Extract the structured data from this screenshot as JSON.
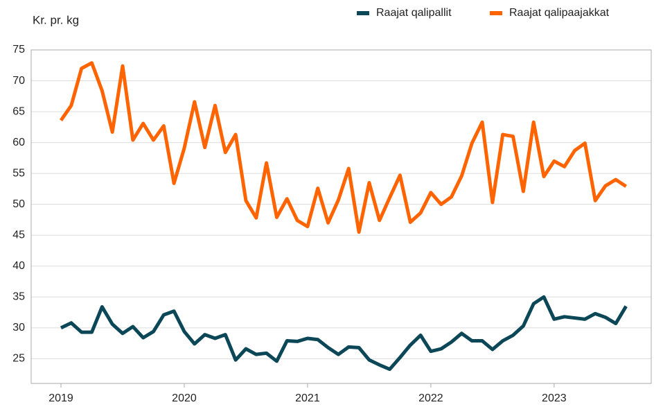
{
  "chart_data": {
    "type": "line",
    "title": "Kr. pr. kg",
    "categories": [
      "2019",
      null,
      null,
      null,
      null,
      null,
      null,
      null,
      null,
      null,
      null,
      null,
      "2020",
      null,
      null,
      null,
      null,
      null,
      null,
      null,
      null,
      null,
      null,
      null,
      "2021",
      null,
      null,
      null,
      null,
      null,
      null,
      null,
      null,
      null,
      null,
      null,
      "2022",
      null,
      null,
      null,
      null,
      null,
      null,
      null,
      null,
      null,
      null,
      null,
      "2023",
      null,
      null,
      null,
      null,
      null,
      null,
      null
    ],
    "series": [
      {
        "name": "Raajat qalipallit",
        "color": "#0b4757",
        "values": [
          30.0,
          30.8,
          29.3,
          29.3,
          33.4,
          30.6,
          29.1,
          30.2,
          28.4,
          29.4,
          32.1,
          32.7,
          29.4,
          27.4,
          28.9,
          28.3,
          28.9,
          24.8,
          26.6,
          25.7,
          25.9,
          24.6,
          27.9,
          27.8,
          28.3,
          28.1,
          26.8,
          25.7,
          26.9,
          26.8,
          24.8,
          24.0,
          23.3,
          25.2,
          27.2,
          28.8,
          26.2,
          26.6,
          27.7,
          29.1,
          27.9,
          27.9,
          26.5,
          27.9,
          28.8,
          30.3,
          33.9,
          35.0,
          31.4,
          31.8,
          31.6,
          31.4,
          32.3,
          31.7,
          30.7,
          33.5
        ]
      },
      {
        "name": "Raajat qalipaajakkat",
        "color": "#ff6400",
        "values": [
          63.6,
          66.0,
          72.0,
          72.9,
          68.4,
          61.7,
          72.4,
          60.4,
          63.1,
          60.4,
          62.7,
          53.4,
          59.1,
          66.6,
          59.2,
          66.0,
          58.4,
          61.3,
          50.6,
          47.8,
          56.7,
          47.9,
          50.9,
          47.4,
          46.4,
          52.6,
          47.0,
          50.7,
          55.8,
          45.5,
          53.5,
          47.4,
          51.1,
          54.7,
          47.1,
          48.6,
          51.9,
          50.0,
          51.2,
          54.6,
          59.9,
          63.3,
          50.3,
          61.3,
          61.0,
          52.1,
          63.3,
          54.5,
          57.0,
          56.1,
          58.7,
          59.9,
          50.6,
          53.0,
          54.0,
          52.9
        ]
      }
    ],
    "ylim": [
      21,
      75
    ],
    "yticks": [
      25,
      30,
      35,
      40,
      45,
      50,
      55,
      60,
      65,
      70,
      75
    ],
    "grid": true,
    "legend": "top-right"
  }
}
